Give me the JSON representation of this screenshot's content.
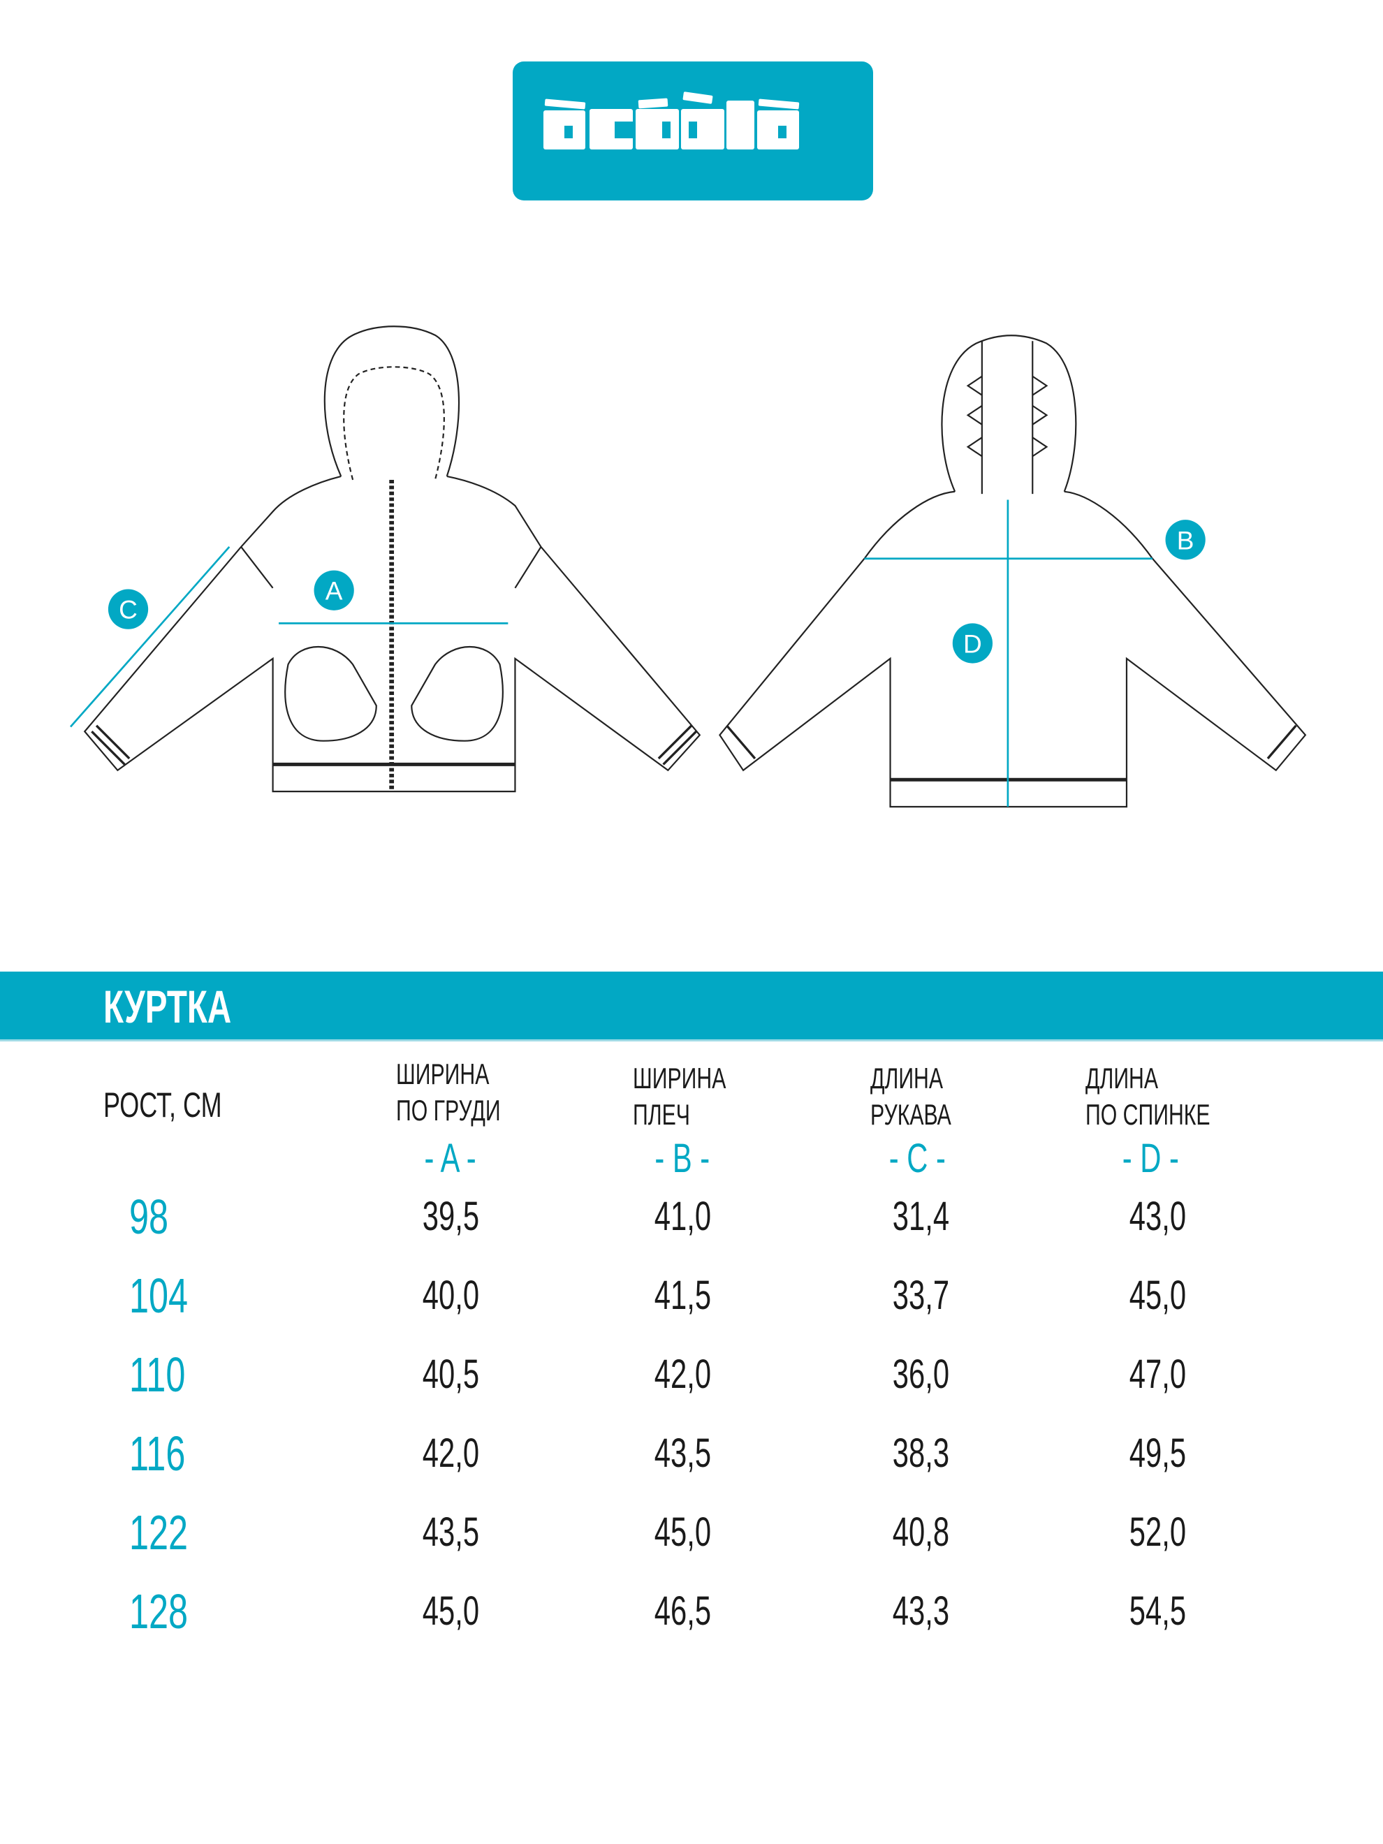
{
  "brand": {
    "logo_text": "acoola",
    "color": "#02a8c4"
  },
  "diagram": {
    "labels": {
      "a": "A",
      "b": "B",
      "c": "C",
      "d": "D"
    }
  },
  "section": {
    "title": "КУРТКА"
  },
  "table": {
    "height_header": "РОСТ, СМ",
    "columns": [
      {
        "line1": "ШИРИНА",
        "line2": "ПО ГРУДИ",
        "letter": "- A -"
      },
      {
        "line1": "ШИРИНА",
        "line2": "ПЛЕЧ",
        "letter": "- B -"
      },
      {
        "line1": "ДЛИНА",
        "line2": "РУКАВА",
        "letter": "- C -"
      },
      {
        "line1": "ДЛИНА",
        "line2": "ПО СПИНКЕ",
        "letter": "- D -"
      }
    ],
    "rows": [
      {
        "size": "98",
        "values": [
          "39,5",
          "41,0",
          "31,4",
          "43,0"
        ]
      },
      {
        "size": "104",
        "values": [
          "40,0",
          "41,5",
          "33,7",
          "45,0"
        ]
      },
      {
        "size": "110",
        "values": [
          "40,5",
          "42,0",
          "36,0",
          "47,0"
        ]
      },
      {
        "size": "116",
        "values": [
          "42,0",
          "43,5",
          "38,3",
          "49,5"
        ]
      },
      {
        "size": "122",
        "values": [
          "43,5",
          "45,0",
          "40,8",
          "52,0"
        ]
      },
      {
        "size": "128",
        "values": [
          "45,0",
          "46,5",
          "43,3",
          "54,5"
        ]
      }
    ]
  }
}
